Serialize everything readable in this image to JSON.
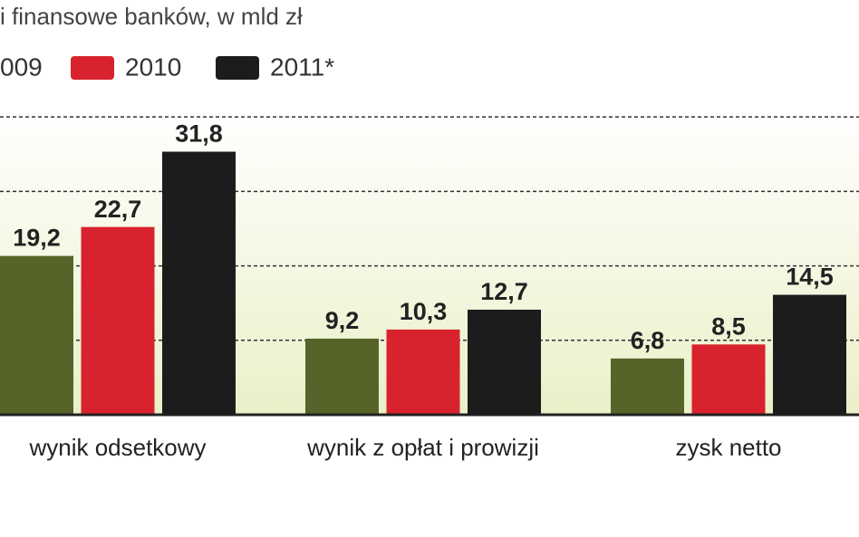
{
  "chart_data": {
    "type": "bar",
    "title": "i finansowe banków, w mld zł",
    "categories": [
      "wynik  odsetkowy",
      "wynik z opłat i prowizji",
      "zysk netto"
    ],
    "series": [
      {
        "name": "009",
        "color": "#56642a",
        "values": [
          19.2,
          9.2,
          6.8
        ],
        "value_labels": [
          "19,2",
          "9,2",
          "6,8"
        ]
      },
      {
        "name": "2010",
        "color": "#d8232e",
        "values": [
          22.7,
          10.3,
          8.5
        ],
        "value_labels": [
          "22,7",
          "10,3",
          "8,5"
        ]
      },
      {
        "name": "2011*",
        "color": "#1c1c1c",
        "values": [
          31.8,
          12.7,
          14.5
        ],
        "value_labels": [
          "31,8",
          "12,7",
          "14,5"
        ]
      }
    ],
    "ylim": [
      0,
      37
    ],
    "yticks": [
      9,
      18,
      27,
      36
    ],
    "grid": true
  }
}
